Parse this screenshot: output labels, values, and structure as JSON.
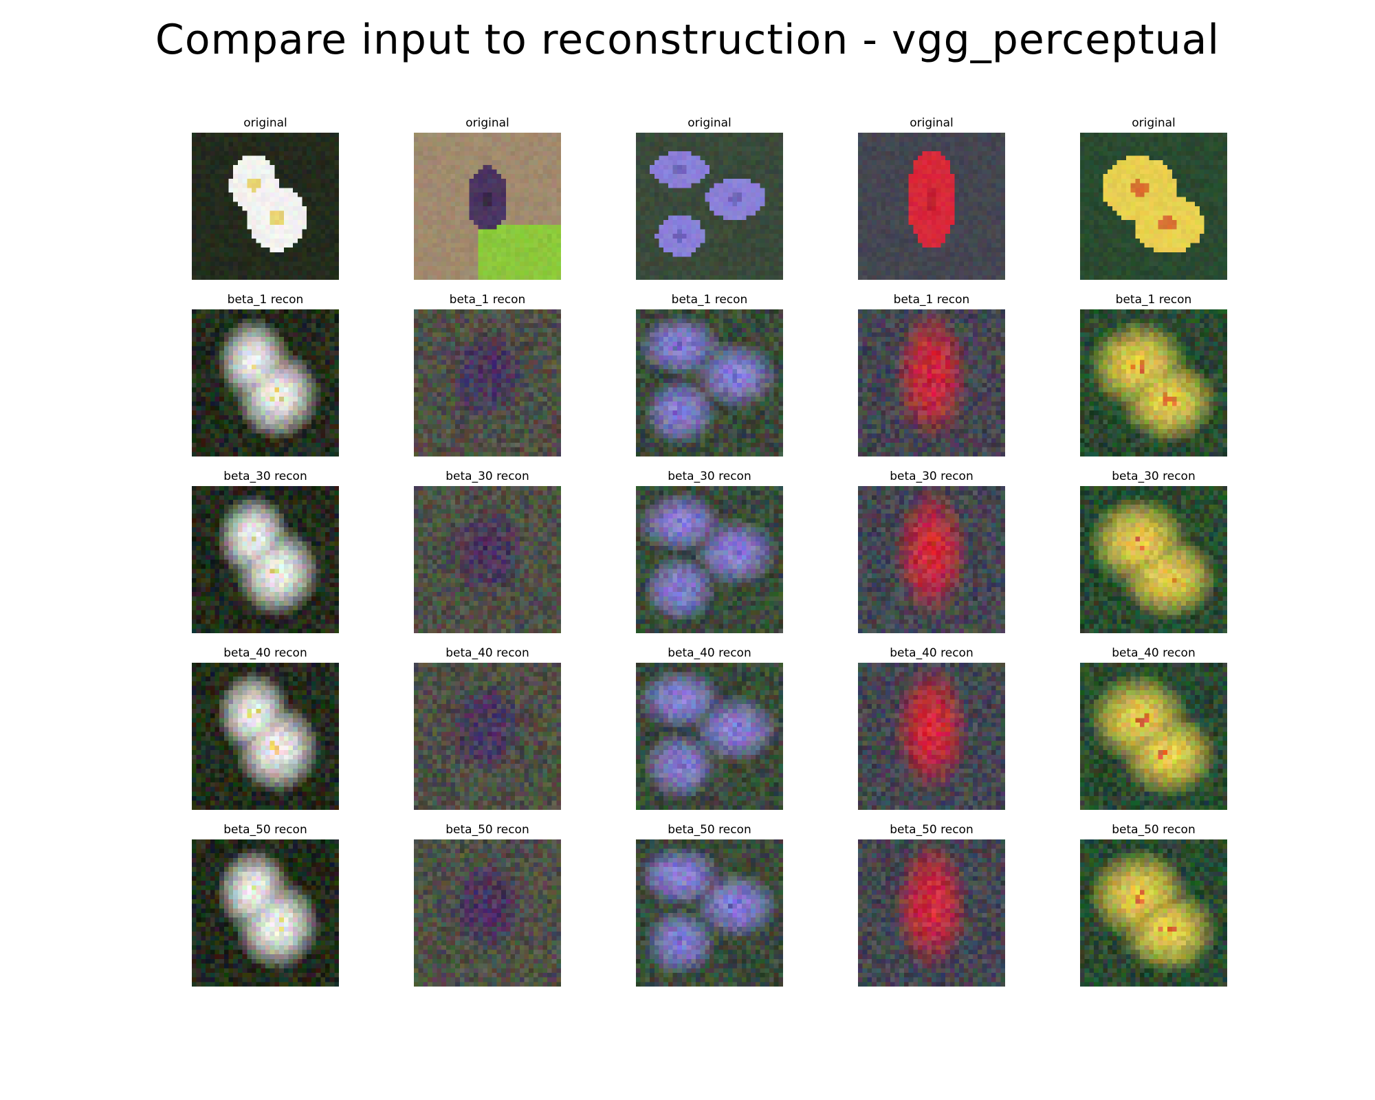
{
  "title": "Compare input to reconstruction - vgg_perceptual",
  "row_labels": [
    "original",
    "beta_1 recon",
    "beta_30 recon",
    "beta_40 recon",
    "beta_50 recon"
  ],
  "columns": [
    {
      "subject": "white flowers with yellow centers on dark green foliage",
      "flower": "#f2f2f0",
      "center": "#e0c020",
      "background": "#232b1d"
    },
    {
      "subject": "dark purple flower in front of a beige-tan background and bright green leaves",
      "flower": "#4a3560",
      "center": "#2a2030",
      "background": "#a08a6e"
    },
    {
      "subject": "lavender-blue flowers with green foliage",
      "flower": "#8a80d8",
      "center": "#5a50a8",
      "background": "#3a4a3a"
    },
    {
      "subject": "red flower against grey leaves",
      "flower": "#d8283a",
      "center": "#b01828",
      "background": "#444650"
    },
    {
      "subject": "yellow and red flowers on green foliage",
      "flower": "#e8d050",
      "center": "#d03020",
      "background": "#2a4a30"
    }
  ],
  "grid": {
    "rows": 5,
    "cols": 5,
    "pixel_resolution": 32
  }
}
